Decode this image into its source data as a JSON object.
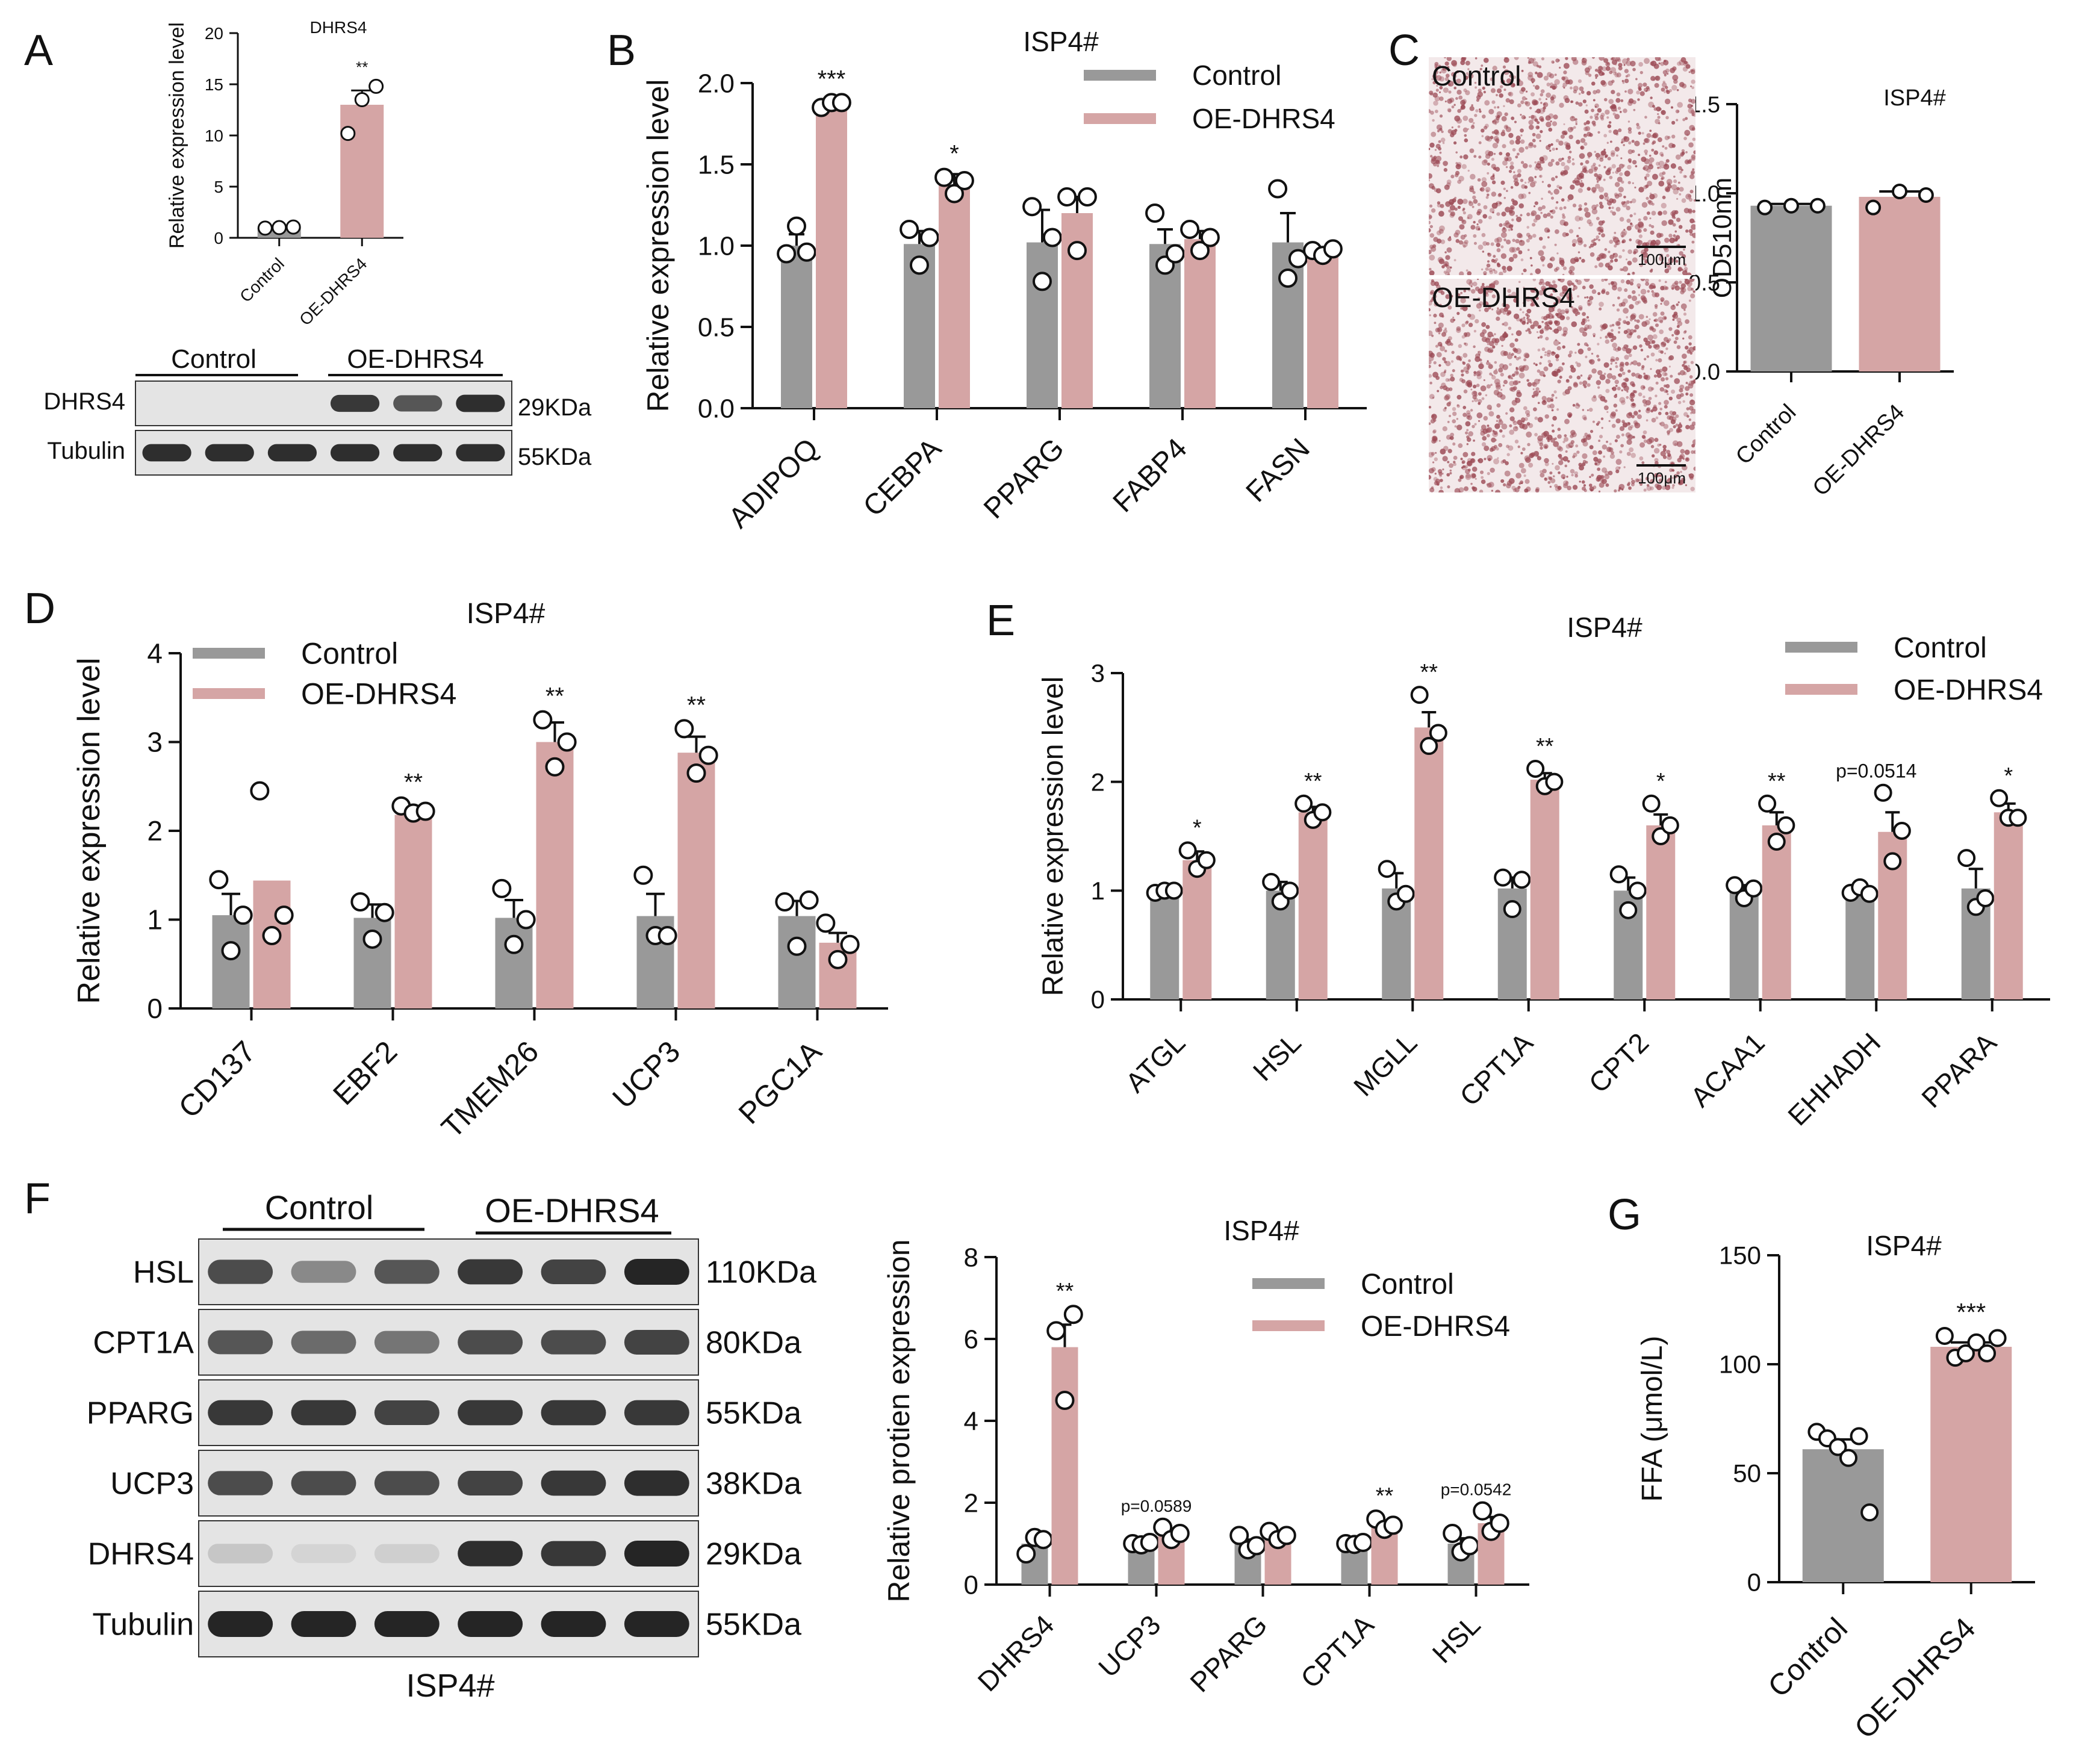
{
  "colors": {
    "control": "#999999",
    "oe": "#D5A5A5",
    "axis": "#111111",
    "blot_bg": "#e4e4e4",
    "band": "#1a1a1a",
    "stain_bg": "#f3e9ea",
    "stain_dot": "#9c4a55"
  },
  "panel_letters": {
    "A": "A",
    "B": "B",
    "C": "C",
    "D": "D",
    "E": "E",
    "F": "F",
    "G": "G"
  },
  "chart_data": [
    {
      "id": "A",
      "type": "bar",
      "title": "DHRS4",
      "ylabel": "Relative expression level",
      "ylim": [
        0,
        20
      ],
      "yticks": [
        "0",
        "5",
        "10",
        "15",
        "20"
      ],
      "ytick_values": [
        0,
        5,
        10,
        15,
        20
      ],
      "categories": [
        "Control",
        "OE-DHRS4"
      ],
      "series": [
        {
          "values": [
            1.0,
            13.0
          ],
          "errors": [
            0.0,
            1.4
          ],
          "points": [
            [
              0.95,
              1.0,
              1.05
            ],
            [
              10.2,
              13.5,
              14.8
            ]
          ]
        }
      ],
      "annotations": [
        "",
        "**"
      ]
    },
    {
      "id": "B",
      "type": "bar",
      "title": "ISP4#",
      "ylabel": "Relative expression level",
      "ylim": [
        0,
        2.0
      ],
      "yticks": [
        "0.0",
        "0.5",
        "1.0",
        "1.5",
        "2.0"
      ],
      "ytick_values": [
        0,
        0.5,
        1.0,
        1.5,
        2.0
      ],
      "categories": [
        "ADIPOQ",
        "CEBPA",
        "PPARG",
        "FABP4",
        "FASN"
      ],
      "legend": [
        "Control",
        "OE-DHRS4"
      ],
      "series": [
        {
          "name": "Control",
          "values": [
            1.0,
            1.01,
            1.02,
            1.01,
            1.02
          ],
          "errors": [
            0.07,
            0.08,
            0.2,
            0.09,
            0.18
          ],
          "points": [
            [
              0.95,
              1.12,
              0.96
            ],
            [
              1.1,
              0.88,
              1.05
            ],
            [
              1.24,
              0.78,
              1.05
            ],
            [
              1.2,
              0.88,
              0.95
            ],
            [
              1.35,
              0.8,
              0.92
            ]
          ]
        },
        {
          "name": "OE-DHRS4",
          "values": [
            1.87,
            1.37,
            1.2,
            1.04,
            0.96
          ],
          "errors": [
            0.03,
            0.07,
            0.1,
            0.05,
            0.03
          ],
          "points": [
            [
              1.85,
              1.88,
              1.88
            ],
            [
              1.42,
              1.32,
              1.4
            ],
            [
              1.3,
              0.97,
              1.3
            ],
            [
              1.1,
              0.97,
              1.05
            ],
            [
              0.97,
              0.94,
              0.98
            ]
          ]
        }
      ],
      "annotations": [
        "***",
        "*",
        "",
        "",
        ""
      ]
    },
    {
      "id": "C",
      "type": "bar",
      "title": "ISP4#",
      "ylabel": "OD510nm",
      "ylim": [
        0,
        1.5
      ],
      "yticks": [
        "0.0",
        "0.5",
        "1.0",
        "1.5"
      ],
      "ytick_values": [
        0,
        0.5,
        1.0,
        1.5
      ],
      "categories": [
        "Control",
        "OE-DHRS4"
      ],
      "series": [
        {
          "values": [
            0.93,
            0.98
          ],
          "errors": [
            0.01,
            0.03
          ],
          "points": [
            [
              0.92,
              0.93,
              0.93
            ],
            [
              0.92,
              1.01,
              0.99
            ]
          ]
        }
      ],
      "annotations": [
        "",
        ""
      ]
    },
    {
      "id": "D",
      "type": "bar",
      "title": "ISP4#",
      "ylabel": "Relative expression level",
      "ylim": [
        0,
        4
      ],
      "yticks": [
        "0",
        "1",
        "2",
        "3",
        "4"
      ],
      "ytick_values": [
        0,
        1,
        2,
        3,
        4
      ],
      "categories": [
        "CD137",
        "EBF2",
        "TMEM26",
        "UCP3",
        "PGC1A"
      ],
      "legend": [
        "Control",
        "OE-DHRS4"
      ],
      "series": [
        {
          "name": "Control",
          "values": [
            1.05,
            1.02,
            1.02,
            1.04,
            1.04
          ],
          "errors": [
            0.24,
            0.15,
            0.2,
            0.25,
            0.17
          ],
          "points": [
            [
              1.45,
              0.65,
              1.05
            ],
            [
              1.2,
              0.78,
              1.08
            ],
            [
              1.35,
              0.72,
              1.0
            ],
            [
              1.5,
              0.82,
              0.82
            ],
            [
              1.2,
              0.7,
              1.22
            ]
          ]
        },
        {
          "name": "OE-DHRS4",
          "values": [
            1.44,
            2.18,
            3.0,
            2.88,
            0.74
          ],
          "errors": [
            0.0,
            0.05,
            0.22,
            0.18,
            0.11
          ],
          "points": [
            [
              2.45,
              0.82,
              1.05
            ],
            [
              2.28,
              2.2,
              2.22
            ],
            [
              3.25,
              2.72,
              3.0
            ],
            [
              3.15,
              2.65,
              2.85
            ],
            [
              0.96,
              0.55,
              0.72
            ]
          ]
        }
      ],
      "annotations": [
        "",
        "**",
        "**",
        "**",
        ""
      ]
    },
    {
      "id": "E",
      "type": "bar",
      "title": "ISP4#",
      "ylabel": "Relative expression level",
      "ylim": [
        0,
        3
      ],
      "yticks": [
        "0",
        "1",
        "2",
        "3"
      ],
      "ytick_values": [
        0,
        1,
        2,
        3
      ],
      "categories": [
        "ATGL",
        "HSL",
        "MGLL",
        "CPT1A",
        "CPT2",
        "ACAA1",
        "EHHADH",
        "PPARA"
      ],
      "legend": [
        "Control",
        "OE-DHRS4"
      ],
      "series": [
        {
          "name": "Control",
          "values": [
            1.0,
            1.0,
            1.02,
            1.02,
            1.0,
            1.0,
            0.99,
            1.02
          ],
          "errors": [
            0.01,
            0.08,
            0.14,
            0.1,
            0.12,
            0.05,
            0.03,
            0.18
          ],
          "points": [
            [
              0.98,
              1.0,
              1.0
            ],
            [
              1.08,
              0.9,
              1.0
            ],
            [
              1.2,
              0.9,
              0.97
            ],
            [
              1.12,
              0.83,
              1.1
            ],
            [
              1.15,
              0.82,
              1.0
            ],
            [
              1.05,
              0.93,
              1.02
            ],
            [
              0.98,
              1.03,
              0.97
            ],
            [
              1.3,
              0.85,
              0.93
            ]
          ]
        },
        {
          "name": "OE-DHRS4",
          "values": [
            1.28,
            1.72,
            2.5,
            2.02,
            1.6,
            1.6,
            1.54,
            1.72
          ],
          "errors": [
            0.08,
            0.05,
            0.14,
            0.06,
            0.1,
            0.12,
            0.18,
            0.08
          ],
          "points": [
            [
              1.37,
              1.2,
              1.28
            ],
            [
              1.8,
              1.65,
              1.72
            ],
            [
              2.8,
              2.33,
              2.45
            ],
            [
              2.12,
              1.96,
              2.0
            ],
            [
              1.8,
              1.5,
              1.6
            ],
            [
              1.8,
              1.45,
              1.6
            ],
            [
              1.9,
              1.27,
              1.55
            ],
            [
              1.85,
              1.67,
              1.67
            ]
          ]
        }
      ],
      "annotations": [
        "*",
        "**",
        "**",
        "**",
        "*",
        "**",
        "p=0.0514",
        "*"
      ]
    },
    {
      "id": "F",
      "type": "bar",
      "title": "ISP4#",
      "ylabel": "Relative protien expression",
      "ylim": [
        0,
        8
      ],
      "yticks": [
        "0",
        "2",
        "4",
        "6",
        "8"
      ],
      "ytick_values": [
        0,
        2,
        4,
        6,
        8
      ],
      "categories": [
        "DHRS4",
        "UCP3",
        "PPARG",
        "CPT1A",
        "HSL"
      ],
      "legend": [
        "Control",
        "OE-DHRS4"
      ],
      "series": [
        {
          "name": "Control",
          "values": [
            1.0,
            1.0,
            1.0,
            1.0,
            1.0
          ],
          "errors": [
            0.1,
            0.03,
            0.1,
            0.05,
            0.13
          ],
          "points": [
            [
              0.75,
              1.15,
              1.1
            ],
            [
              1.0,
              0.97,
              1.03
            ],
            [
              1.2,
              0.85,
              0.95
            ],
            [
              1.0,
              0.98,
              1.03
            ],
            [
              1.25,
              0.8,
              0.95
            ]
          ]
        },
        {
          "name": "OE-DHRS4",
          "values": [
            5.8,
            1.25,
            1.2,
            1.45,
            1.5
          ],
          "errors": [
            0.55,
            0.1,
            0.05,
            0.1,
            0.15
          ],
          "points": [
            [
              6.2,
              4.5,
              6.6
            ],
            [
              1.4,
              1.1,
              1.25
            ],
            [
              1.3,
              1.1,
              1.2
            ],
            [
              1.6,
              1.35,
              1.45
            ],
            [
              1.8,
              1.3,
              1.5
            ]
          ]
        }
      ],
      "annotations": [
        "**",
        "p=0.0589",
        "",
        "**",
        "p=0.0542"
      ]
    },
    {
      "id": "G",
      "type": "bar",
      "title": "ISP4#",
      "ylabel": "FFA (μmol/L)",
      "ylim": [
        0,
        150
      ],
      "yticks": [
        "0",
        "50",
        "100",
        "150"
      ],
      "ytick_values": [
        0,
        50,
        100,
        150
      ],
      "categories": [
        "Control",
        "OE-DHRS4"
      ],
      "series": [
        {
          "values": [
            61,
            108
          ],
          "errors": [
            4.5,
            2.0
          ],
          "points": [
            [
              69,
              66,
              62,
              57,
              67,
              32
            ],
            [
              113,
              103,
              105,
              110,
              105,
              112
            ]
          ]
        }
      ],
      "annotations": [
        "",
        "***"
      ]
    }
  ],
  "blot_A": {
    "groups": [
      "Control",
      "OE-DHRS4"
    ],
    "rows": [
      {
        "label": "DHRS4",
        "size": "29KDa",
        "intensity": [
          0,
          0,
          0,
          0.85,
          0.7,
          0.9
        ]
      },
      {
        "label": "Tubulin",
        "size": "55KDa",
        "intensity": [
          0.9,
          0.9,
          0.9,
          0.9,
          0.9,
          0.9
        ]
      }
    ]
  },
  "blot_F": {
    "groups": [
      "Control",
      "OE-DHRS4"
    ],
    "caption": "ISP4#",
    "rows": [
      {
        "label": "HSL",
        "size": "110KDa",
        "intensity": [
          0.75,
          0.45,
          0.7,
          0.85,
          0.8,
          0.95
        ]
      },
      {
        "label": "CPT1A",
        "size": "80KDa",
        "intensity": [
          0.7,
          0.6,
          0.55,
          0.75,
          0.75,
          0.8
        ]
      },
      {
        "label": "PPARG",
        "size": "55KDa",
        "intensity": [
          0.85,
          0.85,
          0.8,
          0.85,
          0.85,
          0.85
        ]
      },
      {
        "label": "UCP3",
        "size": "38KDa",
        "intensity": [
          0.75,
          0.75,
          0.75,
          0.8,
          0.85,
          0.9
        ]
      },
      {
        "label": "DHRS4",
        "size": "29KDa",
        "intensity": [
          0.15,
          0.08,
          0.1,
          0.9,
          0.85,
          0.95
        ]
      },
      {
        "label": "Tubulin",
        "size": "55KDa",
        "intensity": [
          0.95,
          0.95,
          0.95,
          0.95,
          0.95,
          0.95
        ]
      }
    ]
  },
  "stain_C": {
    "images": [
      {
        "label": "Control",
        "scale": "100μm"
      },
      {
        "label": "OE-DHRS4",
        "scale": "100μm"
      }
    ]
  }
}
